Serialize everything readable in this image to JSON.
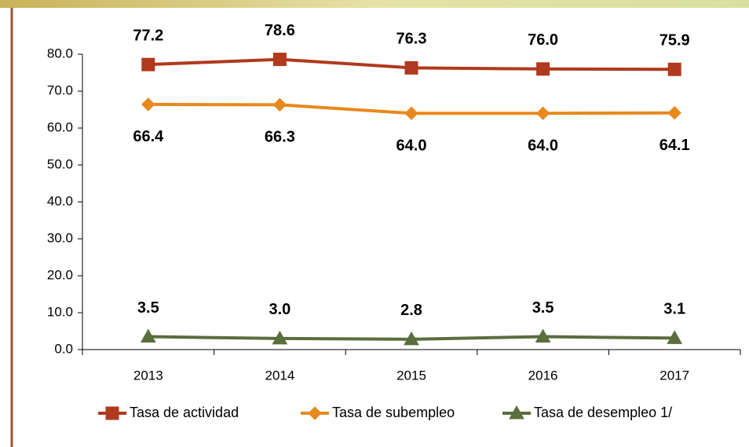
{
  "chart_data": {
    "type": "line",
    "categories": [
      "2013",
      "2014",
      "2015",
      "2016",
      "2017"
    ],
    "series": [
      {
        "name": "Tasa de actividad",
        "color": "#b0391e",
        "marker": "square",
        "values": [
          77.2,
          78.6,
          76.3,
          76.0,
          75.9
        ],
        "value_labels": [
          "77.2",
          "78.6",
          "76.3",
          "76.0",
          "75.9"
        ]
      },
      {
        "name": "Tasa de subempleo",
        "color": "#e8891e",
        "marker": "diamond",
        "values": [
          66.4,
          66.3,
          64.0,
          64.0,
          64.1
        ],
        "value_labels": [
          "66.4",
          "66.3",
          "64.0",
          "64.0",
          "64.1"
        ]
      },
      {
        "name": "Tasa de desempleo 1/",
        "color": "#5b6e3e",
        "marker": "triangle",
        "values": [
          3.5,
          3.0,
          2.8,
          3.5,
          3.1
        ],
        "value_labels": [
          "3.5",
          "3.0",
          "2.8",
          "3.5",
          "3.1"
        ]
      }
    ],
    "ylim": [
      0,
      80
    ],
    "yticks": [
      {
        "value": 0,
        "label": "0.0"
      },
      {
        "value": 10,
        "label": "10.0"
      },
      {
        "value": 20,
        "label": "20.0"
      },
      {
        "value": 30,
        "label": "30.0"
      },
      {
        "value": 40,
        "label": "40.0"
      },
      {
        "value": 50,
        "label": "50.0"
      },
      {
        "value": 60,
        "label": "60.0"
      },
      {
        "value": 70,
        "label": "70.0"
      },
      {
        "value": 80,
        "label": "80.0"
      }
    ],
    "legend": "bottom"
  }
}
